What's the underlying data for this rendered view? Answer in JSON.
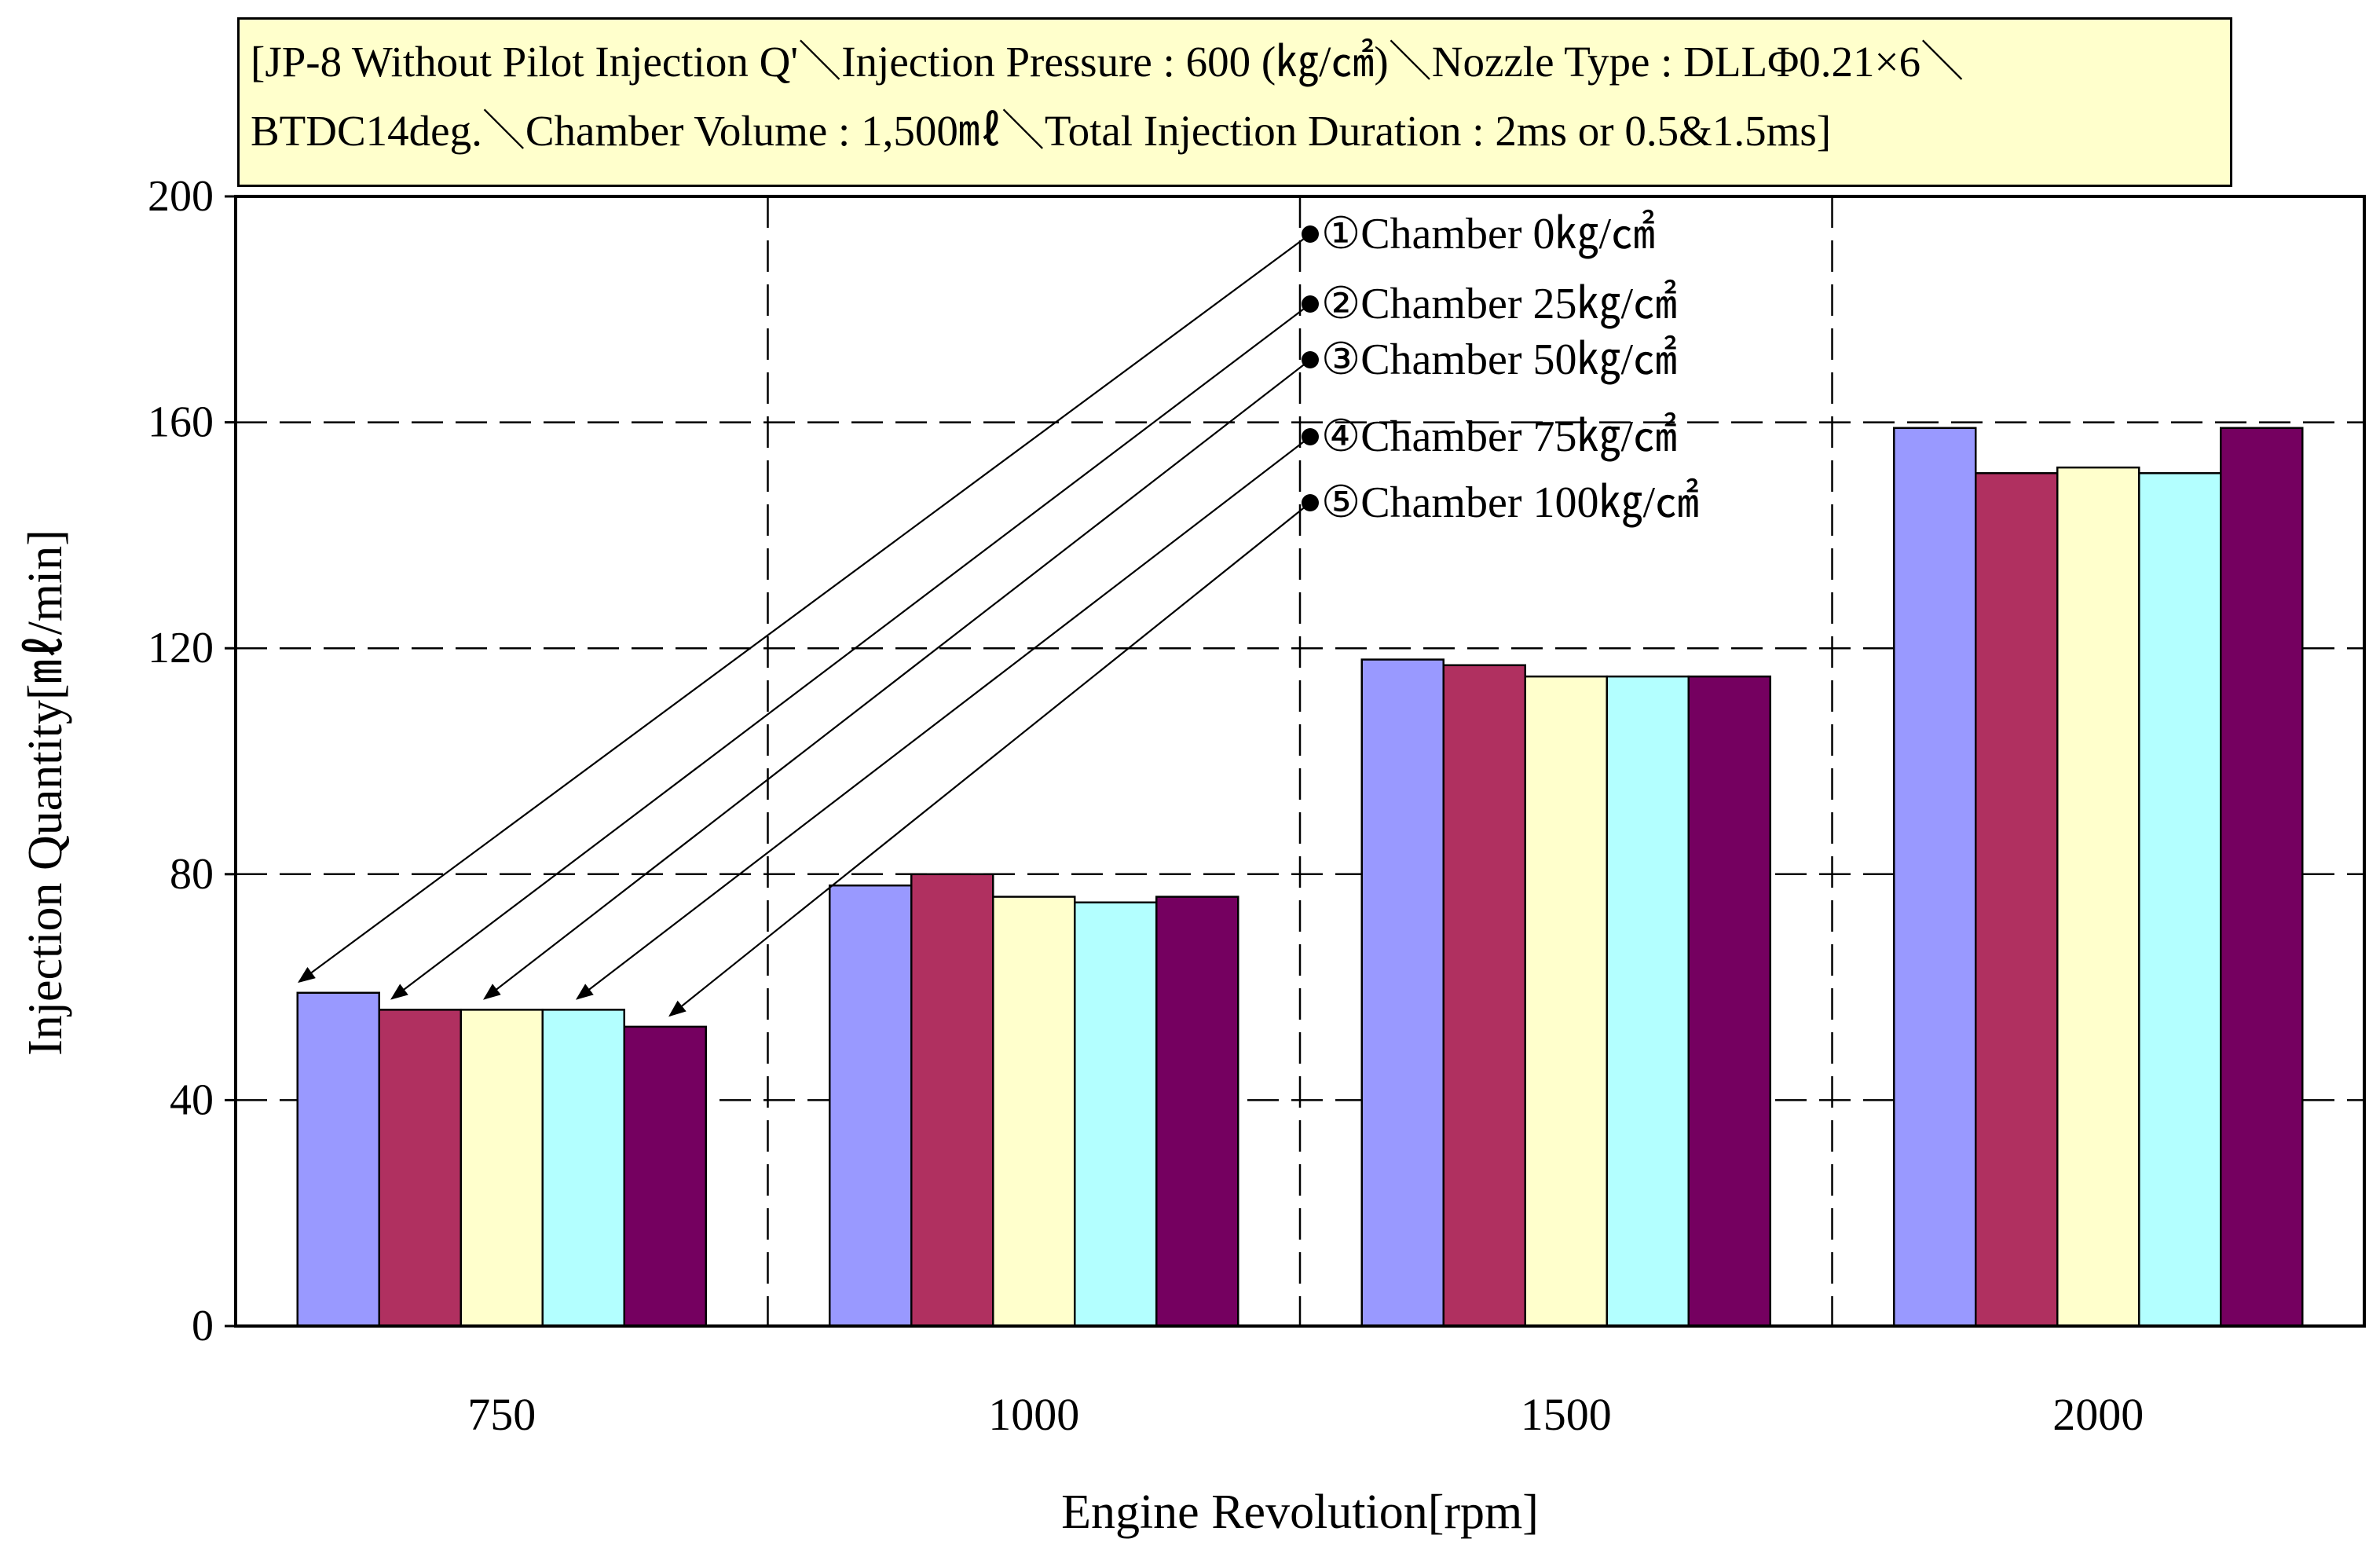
{
  "chart_data": {
    "type": "bar",
    "title_lines": [
      "[JP-8 Without Pilot Injection Q'＼Injection Pressure : 600 (㎏/㎠)＼Nozzle Type : DLLΦ0.21×6＼",
      "BTDC14deg.＼Chamber Volume : 1,500㎖＼Total Injection Duration  : 2ms or 0.5&1.5ms]"
    ],
    "xlabel": "Engine Revolution[rpm]",
    "ylabel": "Injection Quantity[㎖/min]",
    "categories": [
      "750",
      "1000",
      "1500",
      "2000"
    ],
    "ylim": [
      0,
      200
    ],
    "yticks": [
      0,
      40,
      80,
      120,
      160,
      200
    ],
    "grid": true,
    "series": [
      {
        "name": "①Chamber    0㎏/㎠",
        "color": "#9999ff",
        "values": [
          59,
          78,
          118,
          159
        ]
      },
      {
        "name": "②Chamber  25㎏/㎠",
        "color": "#b03060",
        "values": [
          56,
          80,
          117,
          151
        ]
      },
      {
        "name": "③Chamber  50㎏/㎠",
        "color": "#ffffcc",
        "values": [
          56,
          76,
          115,
          152
        ]
      },
      {
        "name": "④Chamber  75㎏/㎠",
        "color": "#b3ffff",
        "values": [
          56,
          75,
          115,
          151
        ]
      },
      {
        "name": "⑤Chamber 100㎏/㎠",
        "color": "#750060",
        "values": [
          53,
          76,
          115,
          159
        ]
      }
    ],
    "legend_placement": "top-center with leader arrows to 750 rpm bars"
  }
}
